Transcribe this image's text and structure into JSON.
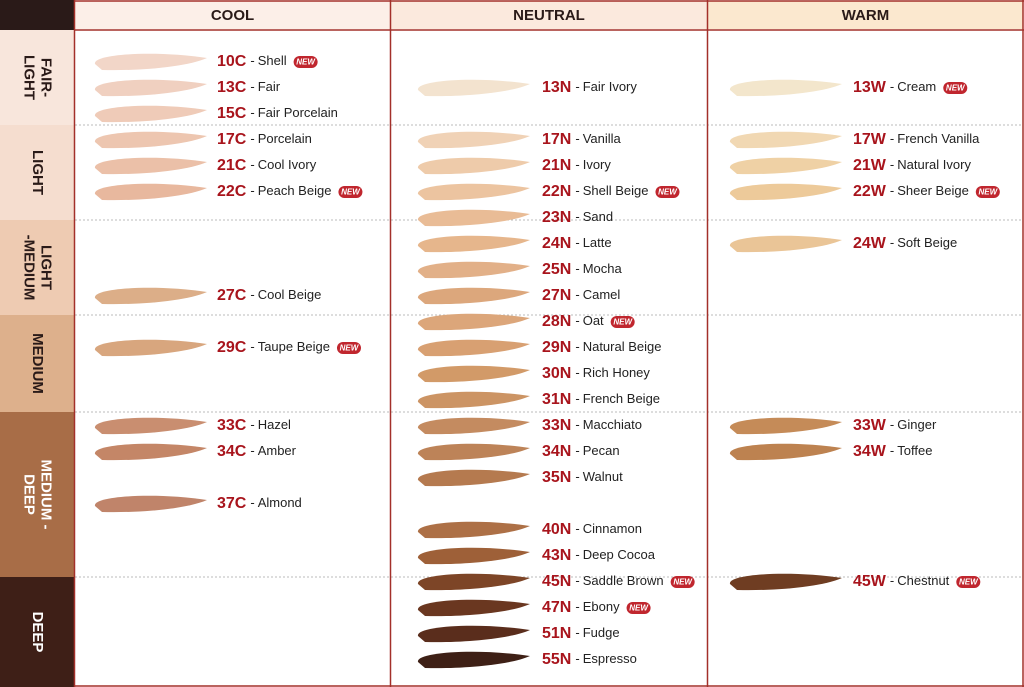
{
  "columns": [
    {
      "header": "COOL",
      "shades": [
        {
          "code": "10C",
          "name": "Shell",
          "new": "NEW",
          "color": "#f2d6c8"
        },
        {
          "code": "13C",
          "name": "Fair",
          "color": "#f0d0c0"
        },
        {
          "code": "15C",
          "name": "Fair Porcelain",
          "color": "#efcbb8"
        },
        {
          "code": "17C",
          "name": "Porcelain",
          "color": "#edc6b0"
        },
        {
          "code": "21C",
          "name": "Cool Ivory",
          "color": "#ebc0a8"
        },
        {
          "code": "22C",
          "name": "Peach Beige",
          "new": "NEW",
          "color": "#e8b89e"
        },
        null,
        null,
        null,
        {
          "code": "27C",
          "name": "Cool Beige",
          "color": "#dcae88"
        },
        null,
        {
          "code": "29C",
          "name": "Taupe Beige",
          "new": "NEW",
          "color": "#d8a67e"
        },
        null,
        null,
        {
          "code": "33C",
          "name": "Hazel",
          "color": "#c98e70"
        },
        {
          "code": "34C",
          "name": "Amber",
          "color": "#c48667"
        },
        null,
        {
          "code": "37C",
          "name": "Almond",
          "color": "#c0846a"
        },
        null,
        null,
        null,
        null,
        null,
        null
      ]
    },
    {
      "header": "NEUTRAL",
      "shades": [
        null,
        {
          "code": "13N",
          "name": "Fair Ivory",
          "color": "#f3e3cf"
        },
        null,
        {
          "code": "17N",
          "name": "Vanilla",
          "color": "#f0d2b6"
        },
        {
          "code": "21N",
          "name": "Ivory",
          "color": "#eecbaa"
        },
        {
          "code": "22N",
          "name": "Shell Beige",
          "new": "NEW",
          "color": "#ecc4a0"
        },
        {
          "code": "23N",
          "name": "Sand",
          "color": "#e9bc96"
        },
        {
          "code": "24N",
          "name": "Latte",
          "color": "#e6b68c"
        },
        {
          "code": "25N",
          "name": "Mocha",
          "color": "#e2b088"
        },
        {
          "code": "27N",
          "name": "Camel",
          "color": "#dca77c"
        },
        {
          "code": "28N",
          "name": "Oat",
          "new": "NEW",
          "color": "#dca67a"
        },
        {
          "code": "29N",
          "name": "Natural Beige",
          "color": "#d8a072"
        },
        {
          "code": "30N",
          "name": "Rich Honey",
          "color": "#d29a68"
        },
        {
          "code": "31N",
          "name": "French Beige",
          "color": "#cc9464"
        },
        {
          "code": "33N",
          "name": "Macchiato",
          "color": "#c48b60"
        },
        {
          "code": "34N",
          "name": "Pecan",
          "color": "#bd8358"
        },
        {
          "code": "35N",
          "name": "Walnut",
          "color": "#b57a4f"
        },
        null,
        {
          "code": "40N",
          "name": "Cinnamon",
          "color": "#ad7046"
        },
        {
          "code": "43N",
          "name": "Deep Cocoa",
          "color": "#9e6038"
        },
        {
          "code": "45N",
          "name": "Saddle Brown",
          "new": "NEW",
          "color": "#7d4527"
        },
        {
          "code": "47N",
          "name": "Ebony",
          "new": "NEW",
          "color": "#6a3720"
        },
        {
          "code": "51N",
          "name": "Fudge",
          "color": "#5a2d1c"
        },
        {
          "code": "55N",
          "name": "Espresso",
          "color": "#3e2016"
        }
      ]
    },
    {
      "header": "WARM",
      "shades": [
        null,
        {
          "code": "13W",
          "name": "Cream",
          "new": "NEW",
          "color": "#f3e6cc"
        },
        null,
        {
          "code": "17W",
          "name": "French Vanilla",
          "color": "#f1d8b3"
        },
        {
          "code": "21W",
          "name": "Natural Ivory",
          "color": "#efd1a5"
        },
        {
          "code": "22W",
          "name": "Sheer Beige",
          "new": "NEW",
          "color": "#edca9a"
        },
        null,
        {
          "code": "24W",
          "name": "Soft Beige",
          "color": "#eac597"
        },
        null,
        null,
        null,
        null,
        null,
        null,
        {
          "code": "33W",
          "name": "Ginger",
          "color": "#c58b58"
        },
        {
          "code": "34W",
          "name": "Toffee",
          "color": "#bd8250"
        },
        null,
        null,
        null,
        null,
        {
          "code": "45W",
          "name": "Chestnut",
          "new": "NEW",
          "color": "#6f3d22"
        },
        null,
        null,
        null
      ]
    }
  ],
  "separator": "-",
  "rows": [
    {
      "lines": [
        "FAIR-",
        "LIGHT"
      ]
    },
    {
      "lines": [
        "LIGHT"
      ]
    },
    {
      "lines": [
        "LIGHT",
        "-MEDIUM"
      ]
    },
    {
      "lines": [
        "MEDIUM"
      ]
    },
    {
      "lines": [
        "MEDIUM -",
        "DEEP"
      ]
    },
    {
      "lines": [
        "DEEP"
      ]
    }
  ]
}
